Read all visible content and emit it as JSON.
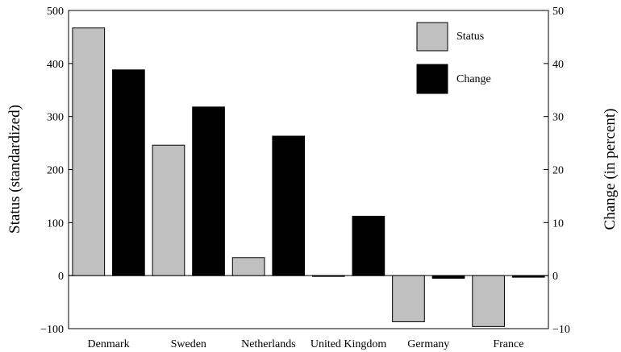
{
  "chart_data": {
    "type": "bar",
    "categories": [
      "Denmark",
      "Sweden",
      "Netherlands",
      "United Kingdom",
      "Germany",
      "France"
    ],
    "series": [
      {
        "name": "Status",
        "axis": "left",
        "color": "#c0c0c0",
        "values": [
          467,
          246,
          34,
          -1,
          -87,
          -96
        ]
      },
      {
        "name": "Change",
        "axis": "right",
        "color": "#000000",
        "values": [
          38.8,
          31.8,
          26.3,
          11.2,
          -0.5,
          -0.3
        ]
      }
    ],
    "ylabel": "Status (standardized)",
    "ylabel_right": "Change (in percent)",
    "ylim": [
      -100,
      500
    ],
    "ylim_right": [
      -10,
      50
    ],
    "yticks": [
      "−100",
      "0",
      "100",
      "200",
      "300",
      "400",
      "500"
    ],
    "yticks_right": [
      "−10",
      "0",
      "10",
      "20",
      "30",
      "40",
      "50"
    ],
    "grid": false,
    "legend_position": "top-right"
  }
}
